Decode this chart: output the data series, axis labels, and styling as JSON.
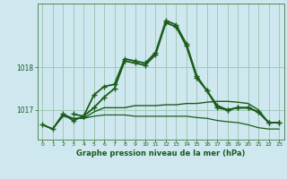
{
  "title": "Graphe pression niveau de la mer (hPa)",
  "background_color": "#cfe8f0",
  "grid_color": "#a0c8b8",
  "line_color": "#1a5c1a",
  "x_ticks": [
    0,
    1,
    2,
    3,
    4,
    5,
    6,
    7,
    8,
    9,
    10,
    11,
    12,
    13,
    14,
    15,
    16,
    17,
    18,
    19,
    20,
    21,
    22,
    23
  ],
  "y_ticks": [
    1017,
    1018
  ],
  "ylim": [
    1016.3,
    1019.5
  ],
  "xlim": [
    -0.5,
    23.5
  ],
  "series": [
    {
      "x": [
        0,
        1,
        2,
        3,
        4,
        5,
        6,
        7,
        8,
        9,
        10,
        11,
        12,
        13,
        14,
        15,
        16,
        17,
        18,
        19,
        20,
        21,
        22,
        23
      ],
      "y": [
        1016.65,
        1016.55,
        1016.9,
        1016.75,
        1016.85,
        1017.35,
        1017.55,
        1017.6,
        1018.2,
        1018.15,
        1018.1,
        1018.35,
        1019.1,
        1019.0,
        1018.55,
        1017.8,
        1017.45,
        1017.1,
        1017.0,
        1017.05,
        1017.05,
        1016.95,
        1016.7,
        1016.7
      ],
      "marker": "+",
      "linewidth": 1.3,
      "markersize": 4
    },
    {
      "x": [
        0,
        1,
        2,
        3,
        4,
        5,
        6,
        7,
        8,
        9,
        10,
        11,
        12,
        13,
        14,
        15,
        16,
        17,
        18,
        19,
        20,
        21,
        22,
        23
      ],
      "y": [
        1016.65,
        1016.55,
        1016.85,
        1016.8,
        1016.8,
        1016.95,
        1017.05,
        1017.05,
        1017.05,
        1017.1,
        1017.1,
        1017.1,
        1017.12,
        1017.12,
        1017.15,
        1017.15,
        1017.18,
        1017.2,
        1017.2,
        1017.18,
        1017.15,
        1017.0,
        1016.7,
        1016.7
      ],
      "marker": null,
      "linewidth": 1.0
    },
    {
      "x": [
        0,
        1,
        2,
        3,
        4,
        5,
        6,
        7,
        8,
        9,
        10,
        11,
        12,
        13,
        14,
        15,
        16,
        17,
        18,
        19,
        20,
        21,
        22,
        23
      ],
      "y": [
        1016.65,
        1016.55,
        1016.9,
        1016.8,
        1016.8,
        1016.85,
        1016.88,
        1016.88,
        1016.88,
        1016.85,
        1016.85,
        1016.85,
        1016.85,
        1016.85,
        1016.85,
        1016.82,
        1016.8,
        1016.75,
        1016.72,
        1016.7,
        1016.65,
        1016.58,
        1016.55,
        1016.55
      ],
      "marker": null,
      "linewidth": 0.9
    },
    {
      "x": [
        3,
        4,
        5,
        6,
        7,
        8,
        9,
        10,
        11,
        12,
        13,
        14,
        15,
        16,
        17,
        18,
        19,
        20,
        21,
        22,
        23
      ],
      "y": [
        1016.9,
        1016.85,
        1017.05,
        1017.3,
        1017.5,
        1018.15,
        1018.1,
        1018.05,
        1018.3,
        1019.05,
        1018.95,
        1018.5,
        1017.75,
        1017.45,
        1017.05,
        1017.0,
        1017.05,
        1017.05,
        1016.95,
        1016.7,
        1016.7
      ],
      "marker": "+",
      "linewidth": 1.3,
      "markersize": 4
    }
  ]
}
